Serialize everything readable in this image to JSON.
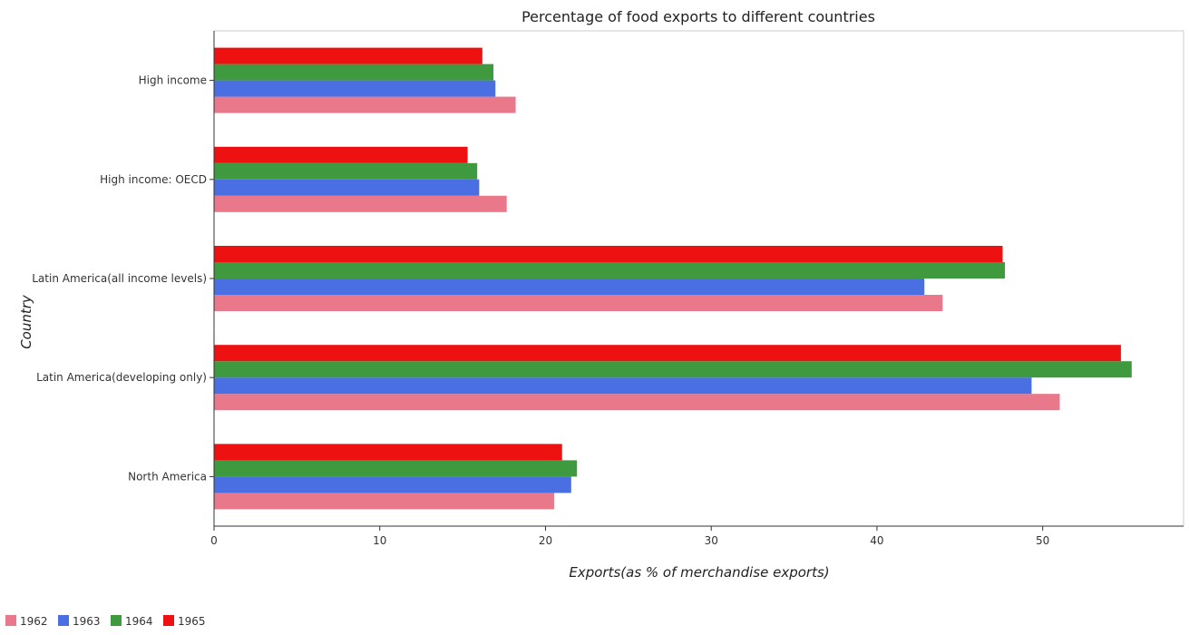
{
  "chart_data": {
    "type": "bar",
    "orientation": "horizontal",
    "title": "Percentage of food exports to different countries",
    "xlabel": "Exports(as % of merchandise exports)",
    "ylabel": "Country",
    "xlim": [
      0,
      58.5
    ],
    "xticks": [
      0,
      10,
      20,
      30,
      40,
      50
    ],
    "grid": false,
    "legend_position": "bottom-left",
    "categories": [
      "High income",
      "High income: OECD",
      "Latin America(all income levels)",
      "Latin America(developing only)",
      "North America"
    ],
    "series": [
      {
        "name": "1962",
        "color": "#e8788a",
        "values": [
          18.2,
          17.66,
          43.96,
          51.03,
          20.52
        ]
      },
      {
        "name": "1963",
        "color": "#4a6fe3",
        "values": [
          16.98,
          16.0,
          42.86,
          49.33,
          21.55
        ]
      },
      {
        "name": "1964",
        "color": "#3f9a3f",
        "values": [
          16.86,
          15.88,
          47.72,
          55.37,
          21.9
        ]
      },
      {
        "name": "1965",
        "color": "#ee1111",
        "values": [
          16.19,
          15.3,
          47.58,
          54.72,
          21.0
        ]
      }
    ]
  }
}
